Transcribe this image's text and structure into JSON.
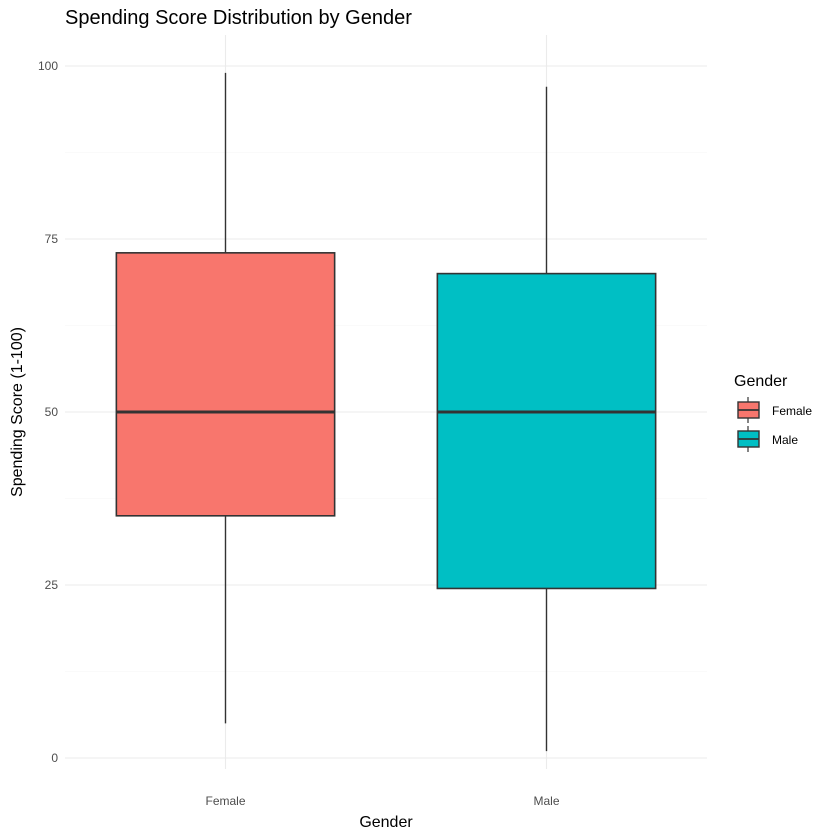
{
  "chart_data": {
    "type": "boxplot",
    "title": "Spending Score Distribution by Gender",
    "xlabel": "Gender",
    "ylabel": "Spending Score (1-100)",
    "categories": [
      "Female",
      "Male"
    ],
    "ylim": [
      -2,
      104
    ],
    "yticks": [
      0,
      25,
      50,
      75,
      100
    ],
    "y_minor_ticks": [
      12.5,
      37.5,
      62.5,
      87.5
    ],
    "grid": true,
    "legend": {
      "title": "Gender",
      "position": "right"
    },
    "series": [
      {
        "name": "Female",
        "color": "#F8766D",
        "min": 5,
        "q1": 35,
        "median": 50,
        "q3": 73,
        "max": 99
      },
      {
        "name": "Male",
        "color": "#00BFC4",
        "min": 1,
        "q1": 24.5,
        "median": 50,
        "q3": 70,
        "max": 97
      }
    ]
  }
}
